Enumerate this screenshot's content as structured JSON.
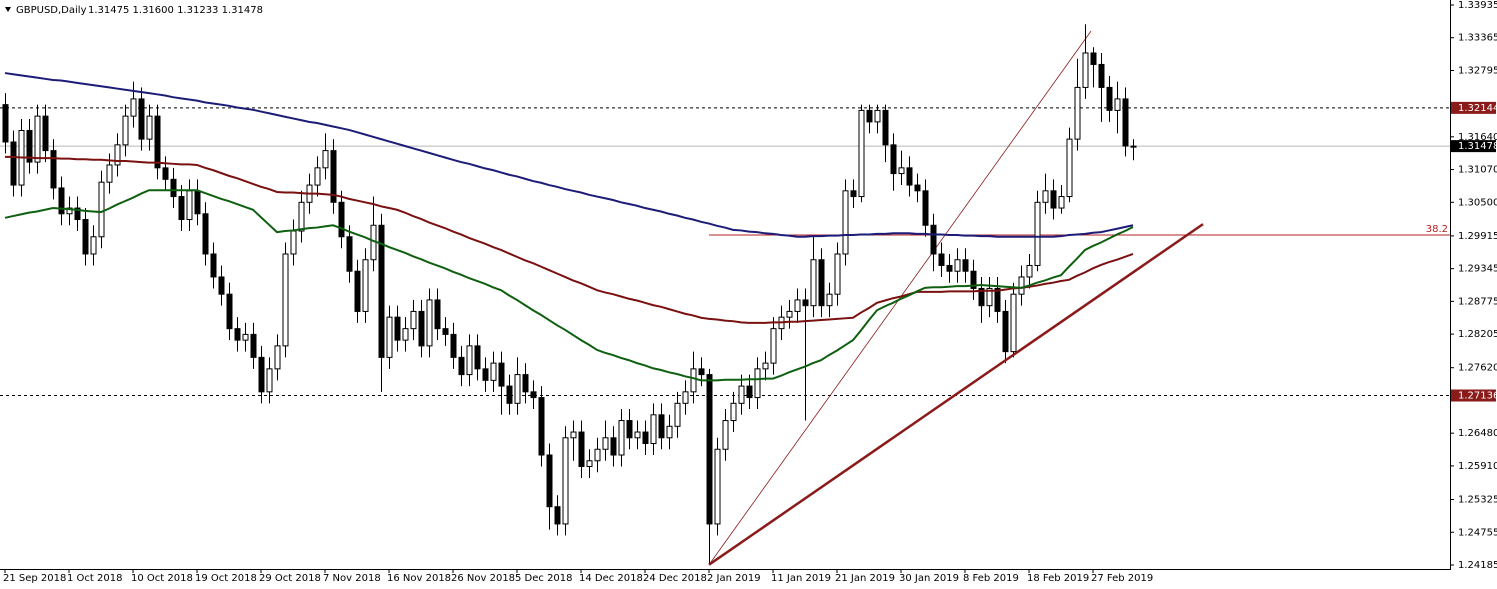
{
  "chart_data": {
    "type": "candlestick",
    "title": "GBPUSD,Daily",
    "subtitle": "1.31475 1.31600 1.31233 1.31478",
    "categories": [
      "21 Sep 2018",
      null,
      null,
      null,
      null,
      null,
      null,
      null,
      "1 Oct 2018",
      null,
      null,
      null,
      null,
      null,
      null,
      null,
      "10 Oct 2018",
      null,
      null,
      null,
      null,
      null,
      null,
      null,
      "19 Oct 2018",
      null,
      null,
      null,
      null,
      null,
      null,
      null,
      "29 Oct 2018",
      null,
      null,
      null,
      null,
      null,
      null,
      null,
      "7 Nov 2018",
      null,
      null,
      null,
      null,
      null,
      null,
      null,
      "16 Nov 2018",
      null,
      null,
      null,
      null,
      null,
      null,
      null,
      "26 Nov 2018",
      null,
      null,
      null,
      null,
      null,
      null,
      null,
      "5 Dec 2018",
      null,
      null,
      null,
      null,
      null,
      null,
      null,
      "14 Dec 2018",
      null,
      null,
      null,
      null,
      null,
      null,
      null,
      "24 Dec 2018",
      null,
      null,
      null,
      null,
      null,
      null,
      null,
      "2 Jan 2019",
      null,
      null,
      null,
      null,
      null,
      null,
      null,
      "11 Jan 2019",
      null,
      null,
      null,
      null,
      null,
      null,
      null,
      "21 Jan 2019",
      null,
      null,
      null,
      null,
      null,
      null,
      null,
      "30 Jan 2019",
      null,
      null,
      null,
      null,
      null,
      null,
      null,
      "8 Feb 2019",
      null,
      null,
      null,
      null,
      null,
      null,
      null,
      "18 Feb 2019",
      null,
      null,
      null,
      null,
      null,
      null,
      null,
      "27 Feb 2019",
      null,
      null,
      null,
      null,
      null
    ],
    "open": [
      1.322,
      1.3155,
      1.308,
      1.3175,
      1.312,
      1.32,
      1.314,
      1.3075,
      1.303,
      1.304,
      1.302,
      1.296,
      1.299,
      1.3085,
      1.3115,
      1.315,
      1.32,
      1.323,
      1.316,
      1.32,
      1.311,
      1.309,
      1.306,
      1.302,
      1.307,
      1.303,
      1.296,
      1.292,
      1.289,
      1.283,
      1.281,
      1.282,
      1.278,
      1.272,
      1.276,
      1.28,
      1.296,
      1.3,
      1.305,
      1.308,
      1.311,
      1.314,
      1.305,
      1.299,
      1.293,
      1.286,
      1.295,
      1.301,
      1.278,
      1.285,
      1.281,
      1.283,
      1.286,
      1.28,
      1.288,
      1.283,
      1.282,
      1.278,
      1.275,
      1.28,
      1.276,
      1.274,
      1.277,
      1.273,
      1.27,
      1.275,
      1.272,
      1.271,
      1.261,
      1.252,
      1.249,
      1.264,
      1.265,
      1.259,
      1.26,
      1.262,
      1.264,
      1.261,
      1.267,
      1.264,
      1.265,
      1.263,
      1.268,
      1.264,
      1.266,
      1.27,
      1.272,
      1.276,
      1.275,
      1.249,
      1.262,
      1.267,
      1.27,
      1.273,
      1.271,
      1.276,
      1.277,
      1.283,
      1.285,
      1.286,
      1.288,
      1.287,
      1.295,
      1.287,
      1.289,
      1.296,
      1.307,
      1.306,
      1.321,
      1.319,
      1.321,
      1.315,
      1.31,
      1.311,
      1.308,
      1.307,
      1.301,
      1.296,
      1.294,
      1.293,
      1.295,
      1.293,
      1.29,
      1.287,
      1.29,
      1.286,
      1.279,
      1.289,
      1.292,
      1.294,
      1.305,
      1.307,
      1.304,
      1.306,
      1.316,
      1.325,
      1.331,
      1.329,
      1.325,
      1.321,
      1.323,
      1.31475
    ],
    "high": [
      1.324,
      1.3175,
      1.3195,
      1.3195,
      1.322,
      1.322,
      1.316,
      1.3095,
      1.306,
      1.306,
      1.304,
      1.301,
      1.3105,
      1.3135,
      1.317,
      1.322,
      1.326,
      1.325,
      1.322,
      1.322,
      1.313,
      1.311,
      1.308,
      1.309,
      1.309,
      1.305,
      1.298,
      1.294,
      1.291,
      1.285,
      1.284,
      1.284,
      1.28,
      1.278,
      1.282,
      1.298,
      1.302,
      1.307,
      1.31,
      1.313,
      1.317,
      1.316,
      1.307,
      1.301,
      1.295,
      1.297,
      1.306,
      1.303,
      1.287,
      1.287,
      1.285,
      1.288,
      1.288,
      1.29,
      1.29,
      1.285,
      1.284,
      1.28,
      1.282,
      1.282,
      1.278,
      1.279,
      1.279,
      1.275,
      1.278,
      1.277,
      1.274,
      1.273,
      1.263,
      1.254,
      1.266,
      1.267,
      1.267,
      1.262,
      1.264,
      1.267,
      1.266,
      1.269,
      1.269,
      1.267,
      1.267,
      1.27,
      1.27,
      1.268,
      1.272,
      1.274,
      1.279,
      1.278,
      1.276,
      1.264,
      1.269,
      1.272,
      1.275,
      1.275,
      1.278,
      1.279,
      1.285,
      1.287,
      1.288,
      1.29,
      1.29,
      1.299,
      1.297,
      1.291,
      1.298,
      1.309,
      1.309,
      1.322,
      1.322,
      1.322,
      1.322,
      1.317,
      1.314,
      1.313,
      1.31,
      1.309,
      1.303,
      1.298,
      1.296,
      1.297,
      1.297,
      1.295,
      1.292,
      1.292,
      1.292,
      1.288,
      1.291,
      1.294,
      1.296,
      1.307,
      1.31,
      1.309,
      1.308,
      1.318,
      1.33,
      1.336,
      1.332,
      1.331,
      1.327,
      1.326,
      1.325,
      1.316
    ],
    "low": [
      1.3135,
      1.306,
      1.306,
      1.31,
      1.31,
      1.312,
      1.3055,
      1.301,
      1.301,
      1.3,
      1.294,
      1.294,
      1.297,
      1.3065,
      1.3095,
      1.313,
      1.318,
      1.314,
      1.314,
      1.309,
      1.307,
      1.304,
      1.3,
      1.3,
      1.301,
      1.294,
      1.29,
      1.287,
      1.281,
      1.279,
      1.279,
      1.276,
      1.27,
      1.27,
      1.274,
      1.278,
      1.294,
      1.298,
      1.303,
      1.306,
      1.309,
      1.303,
      1.297,
      1.291,
      1.284,
      1.284,
      1.293,
      1.272,
      1.276,
      1.279,
      1.279,
      1.281,
      1.278,
      1.278,
      1.281,
      1.28,
      1.276,
      1.273,
      1.273,
      1.274,
      1.272,
      1.272,
      1.268,
      1.268,
      1.268,
      1.27,
      1.269,
      1.259,
      1.248,
      1.247,
      1.247,
      1.26,
      1.257,
      1.257,
      1.258,
      1.26,
      1.259,
      1.259,
      1.262,
      1.262,
      1.261,
      1.261,
      1.262,
      1.262,
      1.264,
      1.268,
      1.27,
      1.273,
      1.2419,
      1.247,
      1.26,
      1.265,
      1.268,
      1.269,
      1.269,
      1.274,
      1.275,
      1.281,
      1.283,
      1.284,
      1.267,
      1.285,
      1.285,
      1.285,
      1.287,
      1.294,
      1.304,
      1.305,
      1.317,
      1.317,
      1.312,
      1.307,
      1.308,
      1.306,
      1.305,
      1.299,
      1.293,
      1.292,
      1.291,
      1.291,
      1.291,
      1.288,
      1.284,
      1.285,
      1.284,
      1.277,
      1.278,
      1.287,
      1.29,
      1.293,
      1.303,
      1.302,
      1.303,
      1.305,
      1.314,
      1.323,
      1.325,
      1.319,
      1.319,
      1.317,
      1.313,
      1.31233
    ],
    "close": [
      1.3155,
      1.308,
      1.3175,
      1.312,
      1.32,
      1.314,
      1.3075,
      1.303,
      1.304,
      1.302,
      1.296,
      1.299,
      1.3085,
      1.3115,
      1.315,
      1.32,
      1.323,
      1.316,
      1.32,
      1.311,
      1.309,
      1.306,
      1.302,
      1.307,
      1.303,
      1.296,
      1.292,
      1.289,
      1.283,
      1.281,
      1.282,
      1.278,
      1.272,
      1.276,
      1.28,
      1.296,
      1.3,
      1.305,
      1.308,
      1.311,
      1.314,
      1.305,
      1.299,
      1.293,
      1.286,
      1.295,
      1.301,
      1.278,
      1.285,
      1.281,
      1.283,
      1.286,
      1.28,
      1.288,
      1.283,
      1.282,
      1.278,
      1.275,
      1.28,
      1.276,
      1.274,
      1.277,
      1.273,
      1.27,
      1.275,
      1.272,
      1.271,
      1.261,
      1.252,
      1.249,
      1.264,
      1.265,
      1.259,
      1.26,
      1.262,
      1.264,
      1.261,
      1.267,
      1.264,
      1.265,
      1.263,
      1.268,
      1.264,
      1.266,
      1.27,
      1.272,
      1.276,
      1.275,
      1.249,
      1.262,
      1.267,
      1.27,
      1.273,
      1.271,
      1.276,
      1.277,
      1.283,
      1.285,
      1.286,
      1.288,
      1.287,
      1.295,
      1.287,
      1.289,
      1.296,
      1.307,
      1.306,
      1.321,
      1.319,
      1.321,
      1.315,
      1.31,
      1.311,
      1.308,
      1.307,
      1.301,
      1.296,
      1.294,
      1.293,
      1.295,
      1.293,
      1.29,
      1.287,
      1.29,
      1.286,
      1.279,
      1.289,
      1.292,
      1.294,
      1.305,
      1.307,
      1.304,
      1.306,
      1.316,
      1.325,
      1.331,
      1.329,
      1.325,
      1.321,
      1.323,
      1.3148,
      1.31478
    ],
    "up_color": "#ffffff",
    "down_color": "#000000",
    "overlays": [
      {
        "color": "#1c1c78",
        "values": [
          1.3275,
          1.3273,
          1.3271,
          1.3269,
          1.3267,
          1.3265,
          1.3263,
          1.3262,
          1.326,
          1.3258,
          1.3256,
          1.3254,
          1.3252,
          1.325,
          1.3248,
          1.3246,
          1.3244,
          1.3242,
          1.324,
          1.3238,
          1.3236,
          1.3233,
          1.3231,
          1.3229,
          1.3227,
          1.3224,
          1.3222,
          1.322,
          1.3218,
          1.3215,
          1.3213,
          1.3211,
          1.3208,
          1.3205,
          1.3202,
          1.3199,
          1.3196,
          1.3193,
          1.319,
          1.3188,
          1.3185,
          1.3182,
          1.3179,
          1.3176,
          1.3172,
          1.3168,
          1.3164,
          1.316,
          1.3156,
          1.3152,
          1.3148,
          1.3144,
          1.314,
          1.3136,
          1.3132,
          1.3128,
          1.3124,
          1.312,
          1.3117,
          1.3113,
          1.3109,
          1.3106,
          1.3102,
          1.3098,
          1.3095,
          1.3091,
          1.3087,
          1.3084,
          1.308,
          1.3077,
          1.3073,
          1.307,
          1.3067,
          1.3063,
          1.306,
          1.3057,
          1.3054,
          1.305,
          1.3047,
          1.3044,
          1.304,
          1.3037,
          1.3034,
          1.303,
          1.3027,
          1.3023,
          1.302,
          1.3016,
          1.3013,
          1.3009,
          1.3006,
          1.3002,
          1.3001,
          1.2999,
          1.2998,
          1.2996,
          1.2995,
          1.2993,
          1.2992,
          1.299,
          1.299,
          1.2991,
          1.2991,
          1.2992,
          1.2992,
          1.2993,
          1.2993,
          1.2994,
          1.2994,
          1.2995,
          1.2995,
          1.2996,
          1.2996,
          1.2996,
          1.2995,
          1.2995,
          1.2994,
          1.2994,
          1.2993,
          1.2993,
          1.2992,
          1.2992,
          1.2991,
          1.2991,
          1.299,
          1.299,
          1.299,
          1.299,
          1.299,
          1.299,
          1.299,
          1.299,
          1.2991,
          1.2993,
          1.2994,
          1.2995,
          1.2997,
          1.2998,
          1.3001,
          1.3004,
          1.3007,
          1.301
        ]
      },
      {
        "color": "#7a1010",
        "values": [
          1.3129,
          1.3129,
          1.3128,
          1.3128,
          1.3127,
          1.3127,
          1.3127,
          1.3126,
          1.3126,
          1.3125,
          1.3125,
          1.3124,
          1.3124,
          1.3123,
          1.3122,
          1.3122,
          1.3121,
          1.312,
          1.3119,
          1.3119,
          1.3118,
          1.3117,
          1.3116,
          1.3116,
          1.3115,
          1.311,
          1.3106,
          1.3101,
          1.3096,
          1.3092,
          1.3087,
          1.3082,
          1.3077,
          1.3073,
          1.3068,
          1.3067,
          1.3067,
          1.3066,
          1.3065,
          1.3065,
          1.3064,
          1.3063,
          1.306,
          1.3056,
          1.3053,
          1.305,
          1.3047,
          1.3043,
          1.304,
          1.3037,
          1.3032,
          1.3026,
          1.3021,
          1.3015,
          1.301,
          1.3005,
          1.2999,
          1.2994,
          1.2988,
          1.2983,
          1.2978,
          1.2972,
          1.2967,
          1.2961,
          1.2955,
          1.2949,
          1.2944,
          1.2938,
          1.2932,
          1.2926,
          1.292,
          1.2914,
          1.2909,
          1.2903,
          1.2897,
          1.2893,
          1.289,
          1.2886,
          1.2882,
          1.2879,
          1.2875,
          1.2871,
          1.2868,
          1.2864,
          1.286,
          1.2856,
          1.2853,
          1.2849,
          1.2847,
          1.2846,
          1.2844,
          1.2843,
          1.2841,
          1.284,
          1.284,
          1.284,
          1.2841,
          1.2841,
          1.2842,
          1.2842,
          1.2843,
          1.2844,
          1.2845,
          1.2846,
          1.2847,
          1.2848,
          1.2849,
          1.2858,
          1.2866,
          1.2875,
          1.2879,
          1.2883,
          1.2886,
          1.289,
          1.2894,
          1.2894,
          1.2894,
          1.2894,
          1.2895,
          1.2895,
          1.2895,
          1.2895,
          1.2896,
          1.2896,
          1.2896,
          1.2898,
          1.29,
          1.2901,
          1.2903,
          1.2905,
          1.2908,
          1.291,
          1.2913,
          1.2915,
          1.2922,
          1.2928,
          1.2935,
          1.2941,
          1.2946,
          1.295,
          1.2955,
          1.296
        ]
      },
      {
        "color": "#0e6010",
        "values": [
          1.3023,
          1.3026,
          1.3029,
          1.3032,
          1.3034,
          1.3037,
          1.304,
          1.3039,
          1.3038,
          1.3037,
          1.3035,
          1.3034,
          1.3033,
          1.3039,
          1.3046,
          1.3052,
          1.3058,
          1.3065,
          1.3071,
          1.3071,
          1.3071,
          1.3071,
          1.3071,
          1.3071,
          1.3071,
          1.3066,
          1.3061,
          1.3056,
          1.3052,
          1.3047,
          1.3042,
          1.3037,
          1.3024,
          1.3011,
          1.2998,
          1.3,
          1.3001,
          1.3003,
          1.3005,
          1.3006,
          1.3008,
          1.301,
          1.3005,
          1.2999,
          1.2994,
          1.2989,
          1.2983,
          1.2978,
          1.2972,
          1.2967,
          1.2962,
          1.2956,
          1.2951,
          1.2945,
          1.294,
          1.2935,
          1.2929,
          1.2924,
          1.2918,
          1.2913,
          1.2908,
          1.2902,
          1.2897,
          1.2888,
          1.288,
          1.2871,
          1.2862,
          1.2854,
          1.2845,
          1.2836,
          1.2828,
          1.2819,
          1.281,
          1.2802,
          1.2793,
          1.2788,
          1.2784,
          1.2779,
          1.2775,
          1.277,
          1.2766,
          1.2761,
          1.2758,
          1.2754,
          1.2751,
          1.2747,
          1.2744,
          1.274,
          1.274,
          1.274,
          1.2741,
          1.2741,
          1.2741,
          1.2742,
          1.2742,
          1.2743,
          1.2743,
          1.2748,
          1.2754,
          1.2759,
          1.2764,
          1.277,
          1.2775,
          1.2784,
          1.2792,
          1.2801,
          1.281,
          1.2827,
          1.2845,
          1.2862,
          1.2869,
          1.2875,
          1.2882,
          1.2888,
          1.2895,
          1.2901,
          1.2902,
          1.2902,
          1.2903,
          1.2904,
          1.2904,
          1.2905,
          1.2906,
          1.2905,
          1.2904,
          1.2903,
          1.2902,
          1.2901,
          1.2905,
          1.291,
          1.2914,
          1.2919,
          1.2923,
          1.2938,
          1.2952,
          1.2967,
          1.2974,
          1.298,
          1.2987,
          1.2994,
          1.3,
          1.3007
        ]
      }
    ],
    "levels": [
      {
        "value": 1.32144,
        "style": "dashed",
        "line_color": "#000000",
        "box_color": "#8b1a1a"
      },
      {
        "value": 1.27136,
        "style": "dashed",
        "line_color": "#000000",
        "box_color": "#8b1a1a"
      },
      {
        "value": 1.31478,
        "style": "solid",
        "line_color": "#b8b8b8",
        "box_color": "#000000"
      }
    ],
    "fib_level": {
      "label": "38.2",
      "value": 1.2993,
      "color": "#b22222"
    },
    "fib_line": {
      "values": [
        1.2419,
        1.3348
      ],
      "color": "#8b1a1a"
    },
    "trendline": {
      "values": [
        1.2419,
        1.3012
      ],
      "color": "#8b1a1a"
    },
    "ylim": [
      1.24185,
      1.33935
    ],
    "yticks": [
      1.33935,
      1.33365,
      1.32795,
      {
        "value": 1.3164,
        "label": "1.31640"
      },
      {
        "value": 1.3107,
        "label": "1.31070"
      },
      {
        "value": 1.305,
        "label": "1.30500"
      },
      1.29915,
      1.29345,
      1.28775,
      1.28205,
      {
        "value": 1.2762,
        "label": "1.27620"
      },
      {
        "value": 1.2648,
        "label": "1.26480"
      },
      {
        "value": 1.2591,
        "label": "1.25910"
      },
      1.25325,
      1.24755,
      1.24185
    ]
  }
}
